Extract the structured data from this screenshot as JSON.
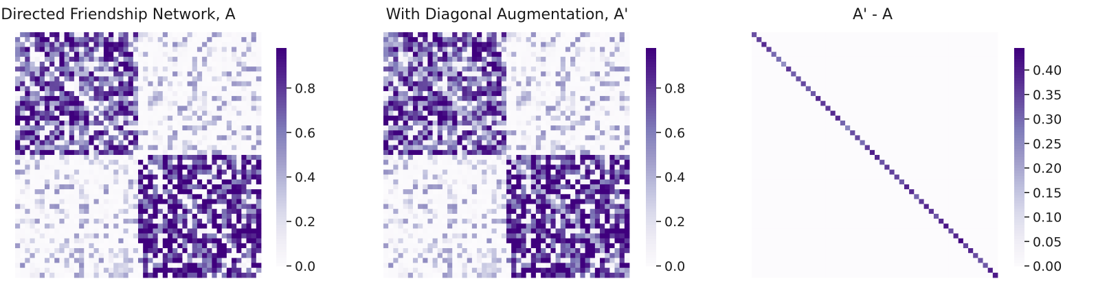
{
  "chart_data": [
    {
      "type": "heatmap",
      "title": "Directed Friendship Network, A",
      "xlabel": "",
      "ylabel": "",
      "colormap": "Purples",
      "n_nodes": 50,
      "blocks": [
        25,
        25
      ],
      "block_means": [
        [
          0.55,
          0.12
        ],
        [
          0.12,
          0.7
        ]
      ],
      "diagonal_value": 0.0,
      "clim": [
        0.0,
        0.98
      ],
      "colorbar_ticks": [
        0.0,
        0.2,
        0.4,
        0.6,
        0.8
      ],
      "colorbar_tick_labels": [
        "0.0",
        "0.2",
        "0.4",
        "0.6",
        "0.8"
      ]
    },
    {
      "type": "heatmap",
      "title": "With Diagonal Augmentation, A'",
      "xlabel": "",
      "ylabel": "",
      "colormap": "Purples",
      "n_nodes": 50,
      "blocks": [
        25,
        25
      ],
      "block_means": [
        [
          0.55,
          0.12
        ],
        [
          0.12,
          0.7
        ]
      ],
      "diagonal_value": "row degree / (n - 1)",
      "clim": [
        0.0,
        0.98
      ],
      "colorbar_ticks": [
        0.0,
        0.2,
        0.4,
        0.6,
        0.8
      ],
      "colorbar_tick_labels": [
        "0.0",
        "0.2",
        "0.4",
        "0.6",
        "0.8"
      ]
    },
    {
      "type": "heatmap",
      "title": "A' - A",
      "xlabel": "",
      "ylabel": "",
      "colormap": "Purples",
      "n_nodes": 50,
      "off_diagonal_value": 0.0,
      "diagonal_range": [
        0.25,
        0.44
      ],
      "clim": [
        0.0,
        0.445
      ],
      "colorbar_ticks": [
        0.0,
        0.05,
        0.1,
        0.15,
        0.2,
        0.25,
        0.3,
        0.35,
        0.4
      ],
      "colorbar_tick_labels": [
        "0.00",
        "0.05",
        "0.10",
        "0.15",
        "0.20",
        "0.25",
        "0.30",
        "0.35",
        "0.40"
      ]
    }
  ],
  "colors": {
    "cmap_low": "#fcfbfd",
    "cmap_high": "#3f007d",
    "text": "#1a1a1a"
  }
}
